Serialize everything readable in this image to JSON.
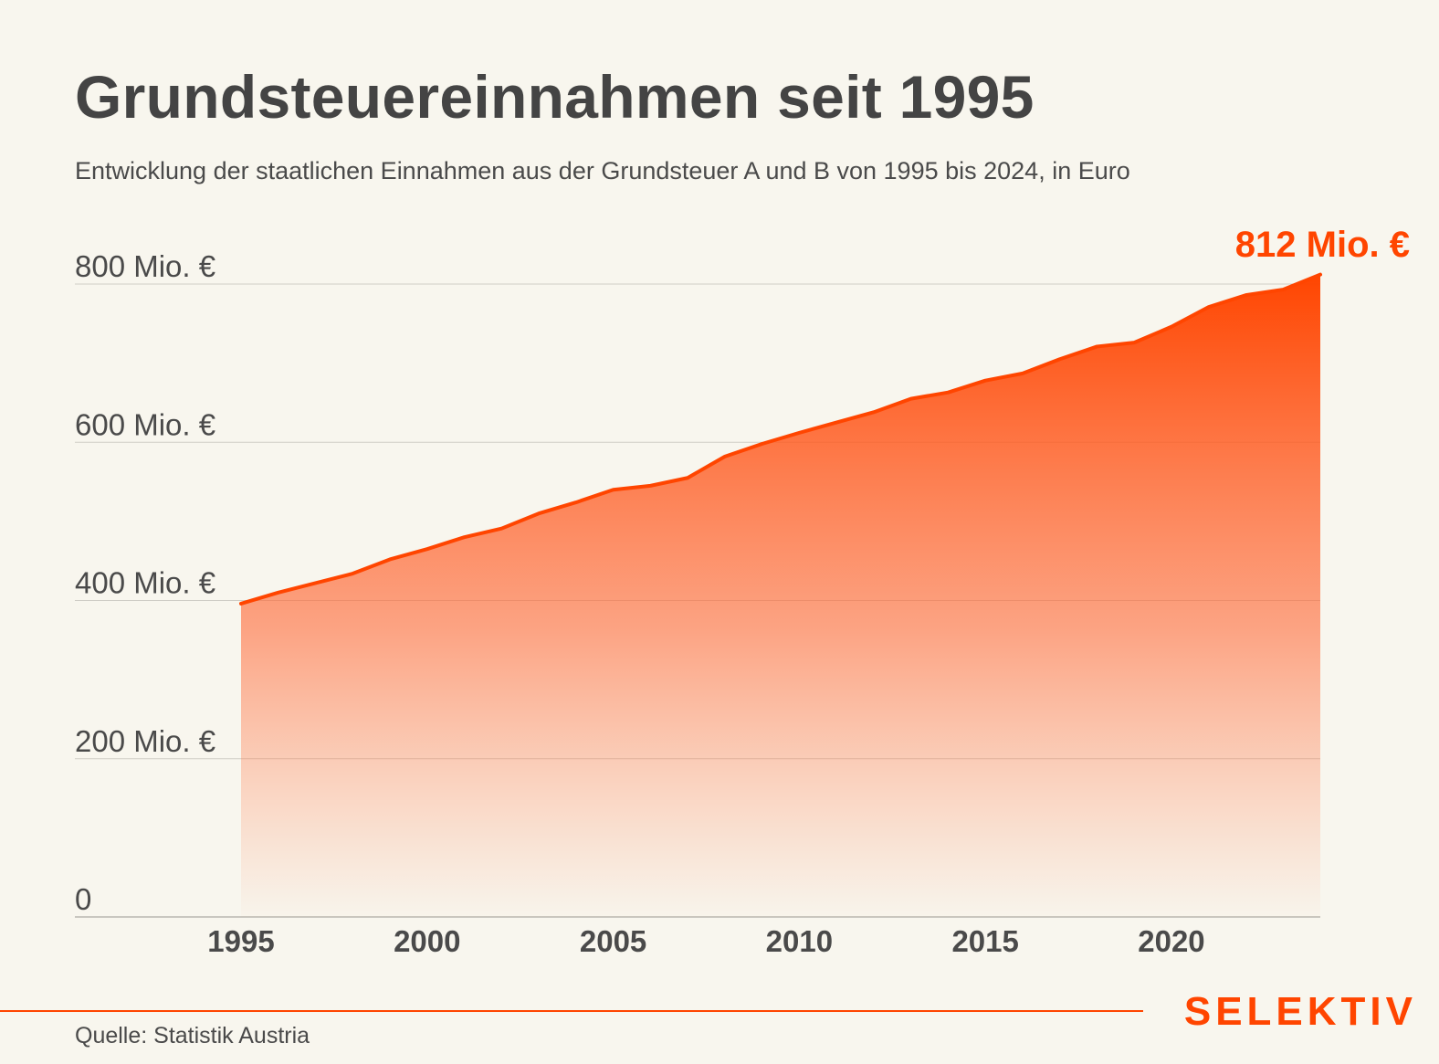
{
  "title": "Grundsteuereinnahmen seit 1995",
  "subtitle": "Entwicklung der staatlichen Einnahmen aus der Grundsteuer A und B von 1995 bis 2024, in Euro",
  "source": "Quelle: Statistik Austria",
  "brand": "SELEKTIV",
  "colors": {
    "accent": "#ff4500",
    "background": "#f8f6ee",
    "text": "#464646",
    "grid": "#cfcdc6"
  },
  "chart_data": {
    "type": "area",
    "title": "Grundsteuereinnahmen seit 1995",
    "xlabel": "",
    "ylabel": "",
    "x": [
      1995,
      1996,
      1997,
      1998,
      1999,
      2000,
      2001,
      2002,
      2003,
      2004,
      2005,
      2006,
      2007,
      2008,
      2009,
      2010,
      2011,
      2012,
      2013,
      2014,
      2015,
      2016,
      2017,
      2018,
      2019,
      2020,
      2021,
      2022,
      2023,
      2024
    ],
    "series": [
      {
        "name": "Grundsteuer A und B",
        "unit": "Mio. €",
        "values": [
          396,
          410,
          422,
          434,
          452,
          465,
          480,
          491,
          510,
          524,
          540,
          545,
          555,
          582,
          598,
          612,
          625,
          638,
          655,
          663,
          678,
          687,
          705,
          721,
          726,
          746,
          771,
          786,
          793,
          812
        ]
      }
    ],
    "ylim": [
      0,
      812
    ],
    "xlim": [
      1995,
      2024
    ],
    "yticks": [
      0,
      200,
      400,
      600,
      800
    ],
    "ytick_labels": [
      "0",
      "200 Mio. €",
      "400 Mio. €",
      "600 Mio. €",
      "800 Mio. €"
    ],
    "xticks": [
      1995,
      2000,
      2005,
      2010,
      2015,
      2020
    ],
    "xtick_labels": [
      "1995",
      "2000",
      "2005",
      "2010",
      "2015",
      "2020"
    ],
    "grid": true,
    "annotation": "812 Mio. €"
  }
}
